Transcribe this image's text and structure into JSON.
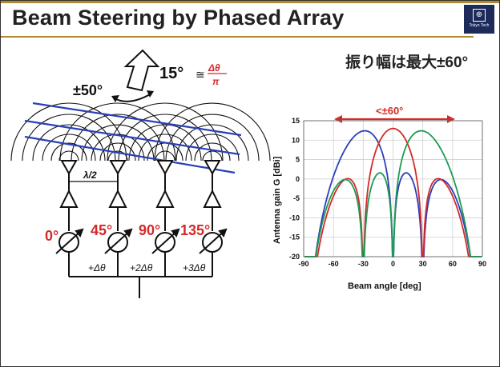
{
  "slide": {
    "title": "Beam Steering by Phased Array",
    "subtitle_jp": "振り幅は最大±60°",
    "logo_text": "Tokyo Tech"
  },
  "diagram": {
    "steer_range_label": "±50°",
    "tilt_label": "15°",
    "approx_symbol": "≅",
    "formula_num": "Δθ",
    "formula_den": "π",
    "spacing_label": "λ/2",
    "phases": [
      "0°",
      "45°",
      "90°",
      "135°"
    ],
    "delays": [
      "+Δθ",
      "+2Δθ",
      "+3Δθ"
    ]
  },
  "chart_data": {
    "type": "line",
    "title": "",
    "range_annotation": "<±60°",
    "xlabel": "Beam angle [deg]",
    "ylabel": "Antenna gain G [dBi]",
    "xlim": [
      -90,
      90
    ],
    "ylim": [
      -20,
      15
    ],
    "xticks": [
      -90,
      -60,
      -30,
      0,
      30,
      60,
      90
    ],
    "yticks": [
      15,
      10,
      5,
      0,
      -5,
      -10,
      -15,
      -20
    ],
    "grid": true,
    "series": [
      {
        "color": "#2a3fb8",
        "steer": -30
      },
      {
        "color": "#d42a2a",
        "steer": 0
      },
      {
        "color": "#1e9a55",
        "steer": 30
      }
    ]
  },
  "colors": {
    "accent": "#b08a2e",
    "red": "#d42a2a",
    "blue": "#2a3fb8",
    "green": "#1e9a55"
  }
}
